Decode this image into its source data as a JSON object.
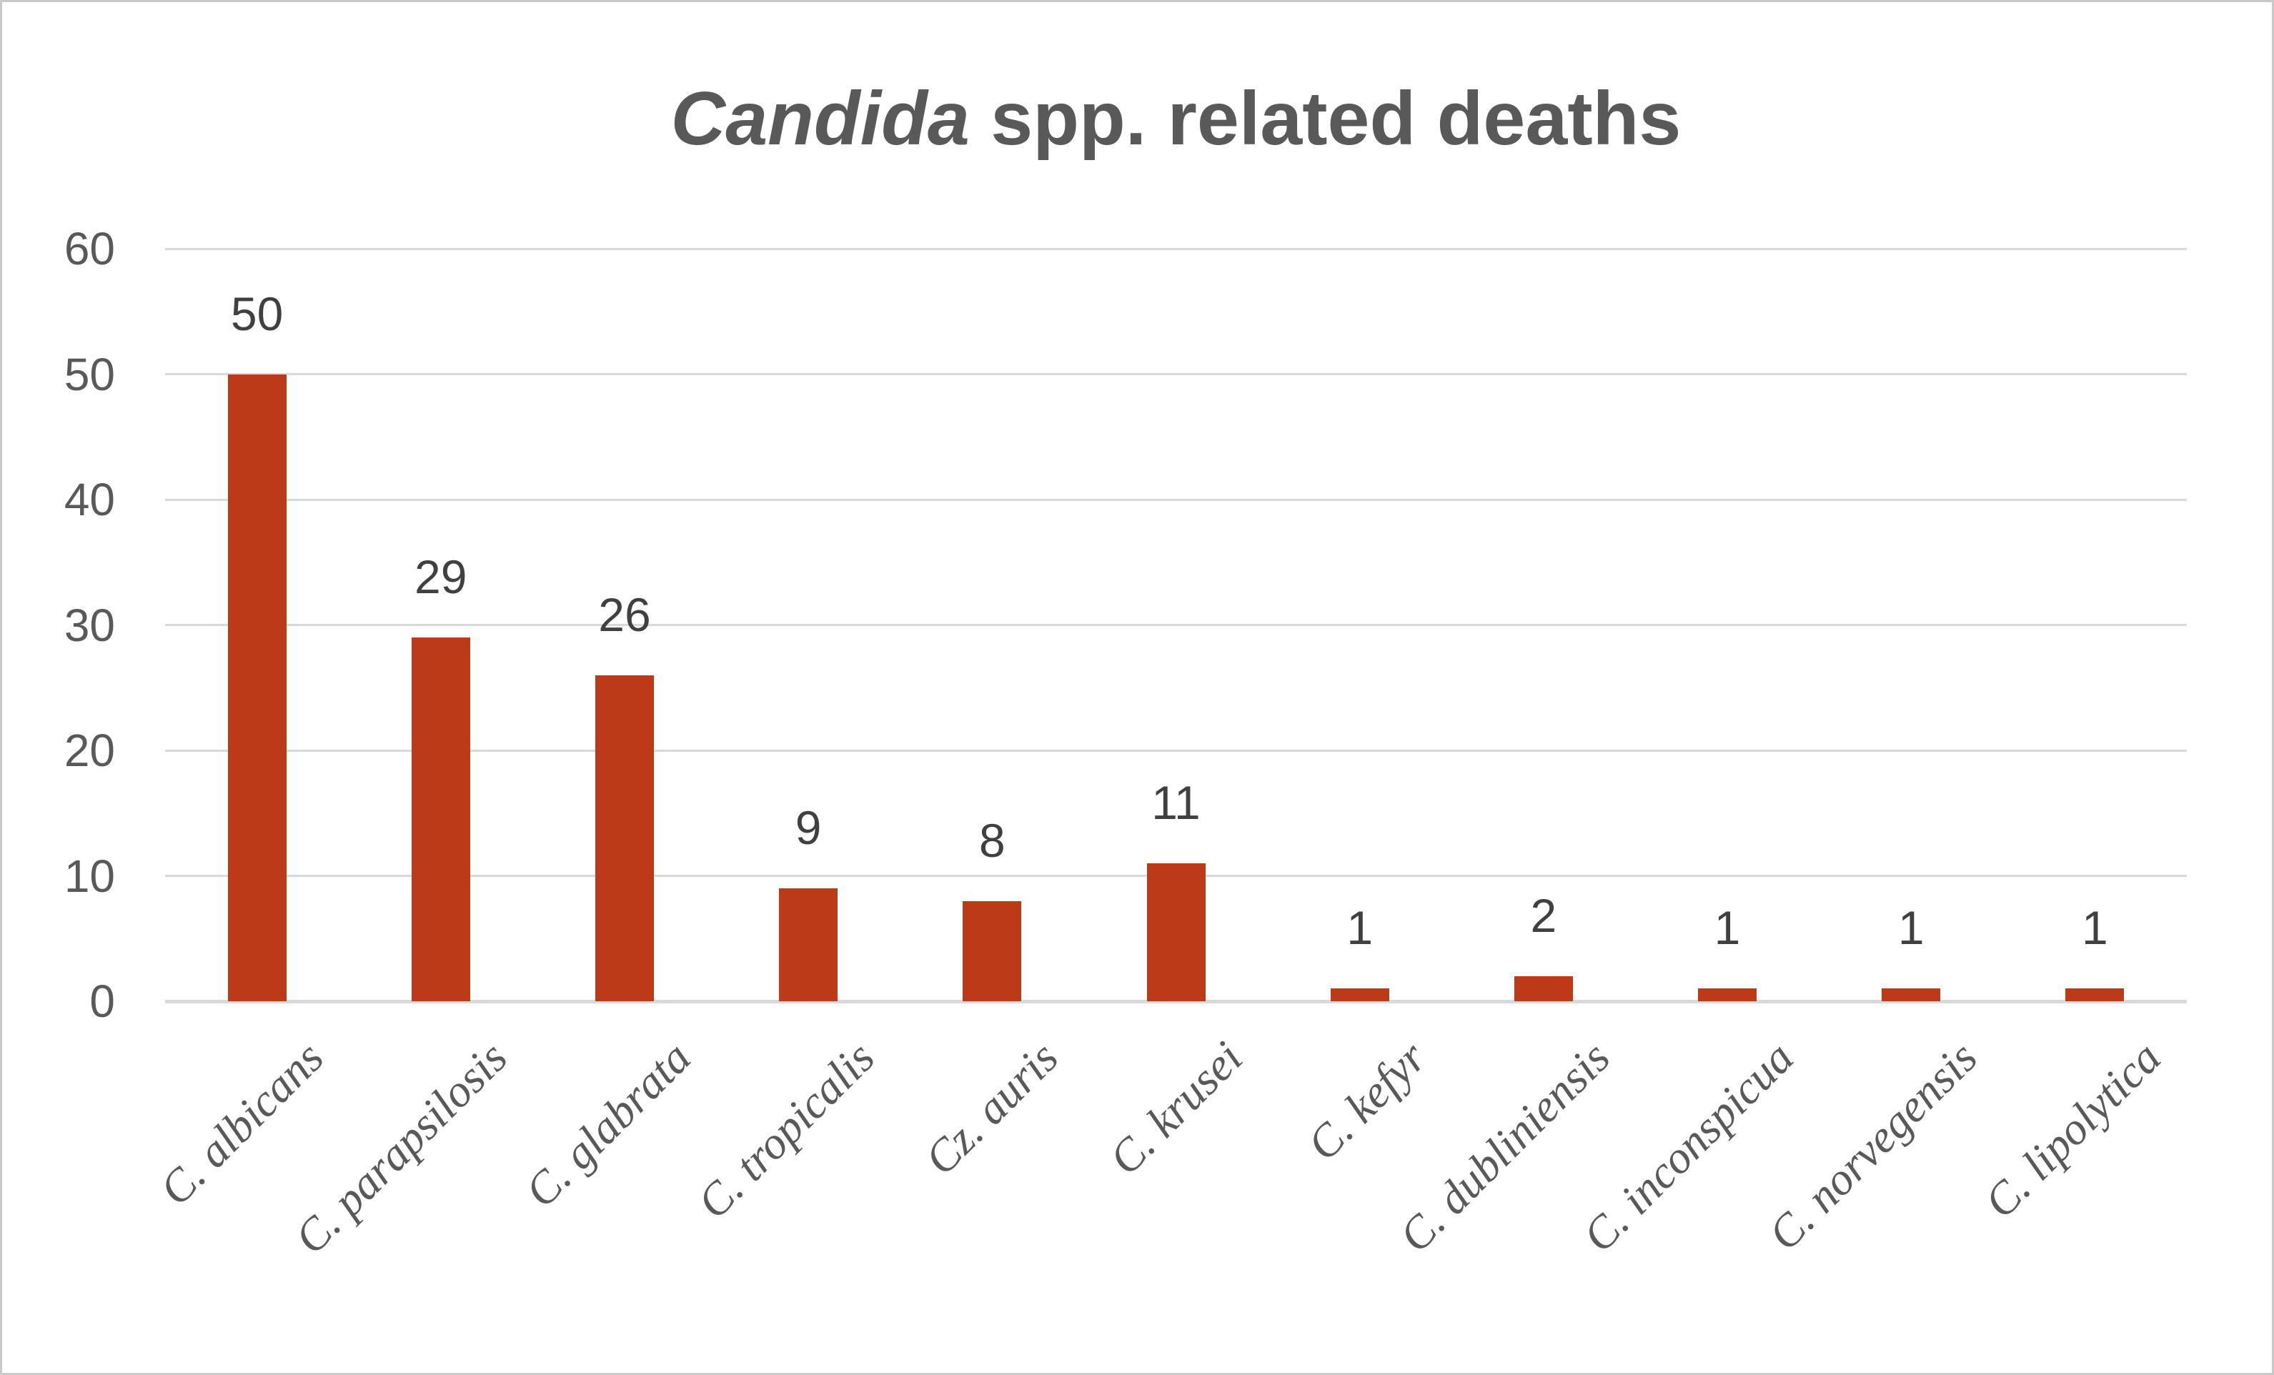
{
  "window": {
    "background_color": "#FFFFFF",
    "border_color": "#C9C9C9"
  },
  "chart_data": {
    "type": "bar",
    "title": "Candida spp. related deaths",
    "title_italic": "Candida",
    "title_rest": " spp. related deaths",
    "categories": [
      "C. albicans",
      "C. parapsilosis",
      "C. glabrata",
      "C. tropicalis",
      "Cz. auris",
      "C. krusei",
      "C. kefyr",
      "C. dubliniensis",
      "C. inconspicua",
      "C. norvegensis",
      "C. lipolytica"
    ],
    "values": [
      50,
      29,
      26,
      9,
      8,
      11,
      1,
      2,
      1,
      1,
      1
    ],
    "data_labels": [
      "50",
      "29",
      "26",
      "9",
      "8",
      "11",
      "1",
      "2",
      "1",
      "1",
      "1"
    ],
    "xlabel": "",
    "ylabel": "",
    "ylim": [
      0,
      60
    ],
    "yticks": [
      0,
      10,
      20,
      30,
      40,
      50,
      60
    ],
    "grid": true,
    "legend": false,
    "category_labels_rotation_deg": -45,
    "category_labels_style": "italic serif",
    "colors": {
      "bar": "#BC3A18",
      "gridline": "#D9D9D9",
      "axis_labels": "#595959",
      "data_labels": "#404040",
      "title": "#595959"
    }
  }
}
